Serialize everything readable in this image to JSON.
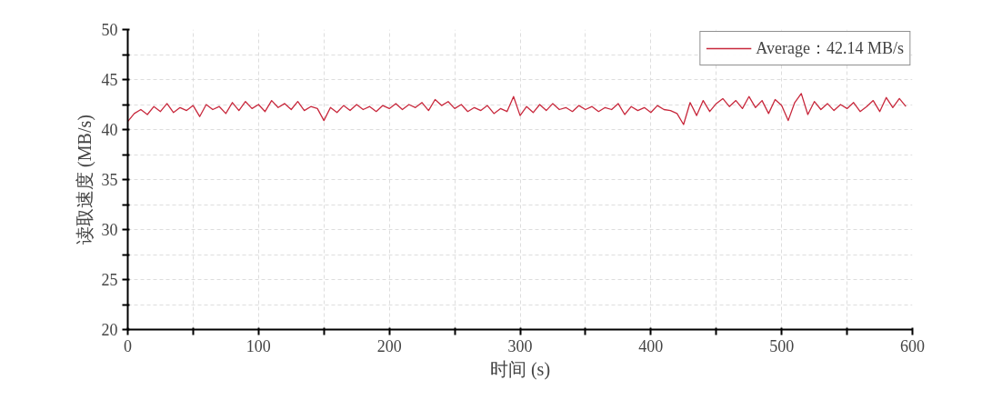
{
  "chart_data": {
    "type": "line",
    "xlabel": "时间 (s)",
    "ylabel": "读取速度 (MB/s)",
    "x": [
      0,
      5,
      10,
      15,
      20,
      25,
      30,
      35,
      40,
      45,
      50,
      55,
      60,
      65,
      70,
      75,
      80,
      85,
      90,
      95,
      100,
      105,
      110,
      115,
      120,
      125,
      130,
      135,
      140,
      145,
      150,
      155,
      160,
      165,
      170,
      175,
      180,
      185,
      190,
      195,
      200,
      205,
      210,
      215,
      220,
      225,
      230,
      235,
      240,
      245,
      250,
      255,
      260,
      265,
      270,
      275,
      280,
      285,
      290,
      295,
      300,
      305,
      310,
      315,
      320,
      325,
      330,
      335,
      340,
      345,
      350,
      355,
      360,
      365,
      370,
      375,
      380,
      385,
      390,
      395,
      400,
      405,
      410,
      415,
      420,
      425,
      430,
      435,
      440,
      445,
      450,
      455,
      460,
      465,
      470,
      475,
      480,
      485,
      490,
      495,
      500,
      505,
      510,
      515,
      520,
      525,
      530,
      535,
      540,
      545,
      550,
      555,
      560,
      565,
      570,
      575,
      580,
      585,
      590,
      595
    ],
    "series": [
      {
        "name": "Average：42.14 MB/s",
        "color": "#c8283c",
        "values": [
          40.8,
          41.6,
          42.0,
          41.5,
          42.3,
          41.8,
          42.6,
          41.7,
          42.2,
          41.9,
          42.4,
          41.3,
          42.5,
          42.0,
          42.3,
          41.6,
          42.7,
          41.9,
          42.8,
          42.1,
          42.5,
          41.8,
          42.9,
          42.2,
          42.6,
          42.0,
          42.8,
          41.9,
          42.3,
          42.1,
          40.9,
          42.2,
          41.7,
          42.4,
          41.9,
          42.5,
          42.0,
          42.3,
          41.8,
          42.4,
          42.1,
          42.6,
          42.0,
          42.5,
          42.2,
          42.7,
          41.9,
          43.0,
          42.4,
          42.8,
          42.1,
          42.5,
          41.8,
          42.2,
          41.9,
          42.4,
          41.6,
          42.1,
          41.8,
          43.3,
          41.4,
          42.3,
          41.7,
          42.5,
          41.9,
          42.6,
          42.0,
          42.2,
          41.8,
          42.4,
          42.0,
          42.3,
          41.8,
          42.2,
          42.0,
          42.6,
          41.5,
          42.3,
          41.9,
          42.2,
          41.7,
          42.4,
          42.0,
          41.9,
          41.6,
          40.5,
          42.7,
          41.4,
          42.9,
          41.8,
          42.6,
          43.1,
          42.3,
          42.9,
          42.1,
          43.3,
          42.2,
          42.9,
          41.6,
          43.0,
          42.4,
          40.9,
          42.7,
          43.6,
          41.5,
          42.8,
          42.0,
          42.6,
          41.9,
          42.5,
          42.1,
          42.7,
          41.8,
          42.3,
          42.9,
          41.8,
          43.2,
          42.2,
          43.1,
          42.3
        ]
      }
    ],
    "xlim": [
      0,
      600
    ],
    "xticks": [
      0,
      {
        "value": 50,
        "label": null
      },
      100,
      {
        "value": 150,
        "label": null
      },
      200,
      {
        "value": 250,
        "label": null
      },
      300,
      {
        "value": 350,
        "label": null
      },
      400,
      {
        "value": 450,
        "label": null
      },
      500,
      {
        "value": 550,
        "label": null
      },
      600
    ],
    "ylim": [
      20,
      50
    ],
    "yticks": [
      20,
      {
        "value": 22.5,
        "label": null
      },
      25,
      {
        "value": 27.5,
        "label": null
      },
      30,
      {
        "value": 32.5,
        "label": null
      },
      35,
      {
        "value": 37.5,
        "label": null
      },
      40,
      {
        "value": 42.5,
        "label": null
      },
      45,
      {
        "value": 47.5,
        "label": null
      },
      50
    ],
    "grid": true,
    "legend": "top right",
    "marker": "none",
    "line_style": "solid"
  }
}
